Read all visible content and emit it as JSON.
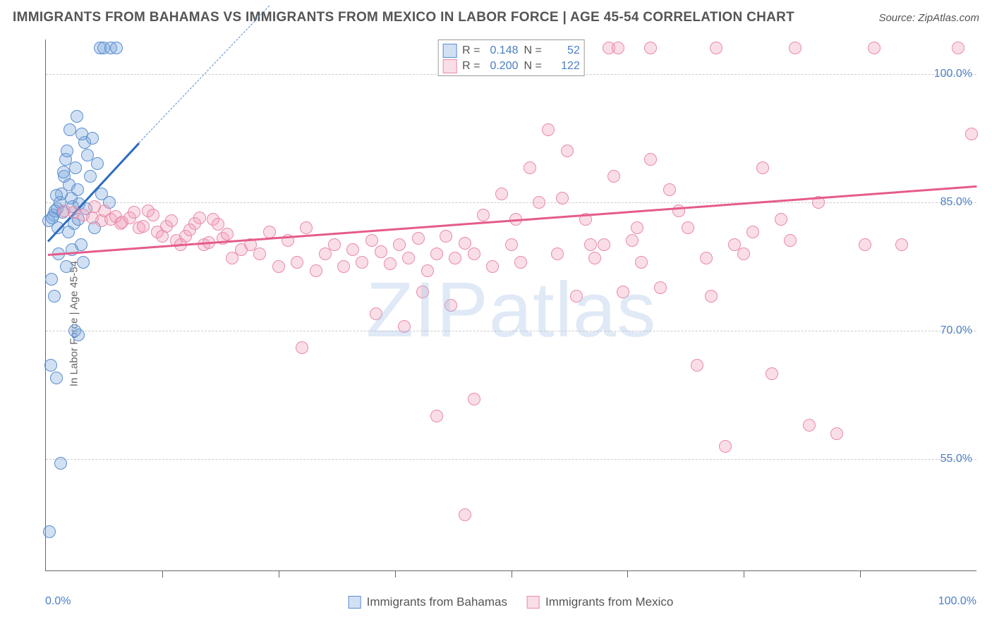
{
  "title": "IMMIGRANTS FROM BAHAMAS VS IMMIGRANTS FROM MEXICO IN LABOR FORCE | AGE 45-54 CORRELATION CHART",
  "source_label": "Source: ZipAtlas.com",
  "watermark_text": "ZIPatlas",
  "chart": {
    "type": "scatter",
    "y_axis_label": "In Labor Force | Age 45-54",
    "x_range": [
      0,
      100
    ],
    "y_range": [
      42,
      104
    ],
    "y_gridlines": [
      55.0,
      70.0,
      85.0,
      100.0
    ],
    "y_tick_labels": [
      "55.0%",
      "70.0%",
      "85.0%",
      "100.0%"
    ],
    "x_min_label": "0.0%",
    "x_max_label": "100.0%",
    "x_tick_positions": [
      12.5,
      25,
      37.5,
      50,
      62.5,
      75,
      87.5
    ],
    "y_tick_label_color": "#4a7fc6",
    "grid_color": "#cccccc",
    "border_color": "#666666",
    "background_color": "#ffffff",
    "marker_radius": 9,
    "marker_stroke_width": 1.2,
    "series": [
      {
        "name": "Immigrants from Bahamas",
        "legend_key": "bahamas",
        "fill_color": "rgba(124,167,220,0.35)",
        "stroke_color": "#5a8ecf",
        "solid_stroke": "#2d6cc0",
        "R": "0.148",
        "N": "52",
        "trend": {
          "x1": 0.2,
          "y1": 80.5,
          "x2": 10,
          "y2": 92,
          "ext_x2": 24,
          "ext_y2": 108
        },
        "points": [
          [
            0.8,
            83.5
          ],
          [
            1.0,
            84.0
          ],
          [
            1.2,
            84.2
          ],
          [
            1.3,
            82.0
          ],
          [
            1.5,
            85.0
          ],
          [
            1.7,
            86.0
          ],
          [
            1.8,
            83.8
          ],
          [
            2.0,
            88.0
          ],
          [
            2.1,
            90.0
          ],
          [
            2.3,
            91.0
          ],
          [
            2.5,
            87.0
          ],
          [
            2.7,
            85.5
          ],
          [
            2.9,
            84.5
          ],
          [
            3.0,
            82.5
          ],
          [
            3.2,
            89.0
          ],
          [
            3.4,
            86.5
          ],
          [
            3.6,
            84.8
          ],
          [
            3.8,
            80.0
          ],
          [
            4.0,
            78.0
          ],
          [
            4.2,
            92.0
          ],
          [
            4.5,
            90.5
          ],
          [
            0.6,
            76.0
          ],
          [
            0.9,
            74.0
          ],
          [
            1.4,
            79.0
          ],
          [
            2.2,
            77.5
          ],
          [
            2.8,
            79.5
          ],
          [
            0.5,
            66.0
          ],
          [
            1.1,
            64.5
          ],
          [
            3.1,
            70.0
          ],
          [
            3.5,
            69.5
          ],
          [
            5.8,
            103.0
          ],
          [
            6.2,
            103.0
          ],
          [
            7.0,
            103.0
          ],
          [
            7.6,
            103.0
          ],
          [
            2.6,
            93.5
          ],
          [
            3.3,
            95.0
          ],
          [
            3.9,
            93.0
          ],
          [
            5.0,
            92.5
          ],
          [
            5.5,
            89.5
          ],
          [
            6.0,
            86.0
          ],
          [
            6.8,
            85.0
          ],
          [
            1.6,
            54.5
          ],
          [
            0.4,
            46.5
          ],
          [
            0.3,
            82.8
          ],
          [
            0.7,
            83.2
          ],
          [
            1.9,
            88.5
          ],
          [
            4.8,
            88.0
          ],
          [
            2.4,
            81.5
          ],
          [
            1.15,
            85.8
          ],
          [
            3.45,
            83.0
          ],
          [
            4.3,
            84.2
          ],
          [
            5.2,
            82.0
          ]
        ]
      },
      {
        "name": "Immigrants from Mexico",
        "legend_key": "mexico",
        "fill_color": "rgba(242,160,185,0.35)",
        "stroke_color": "#e88aa8",
        "solid_stroke": "#e55b8a",
        "R": "0.200",
        "N": "122",
        "trend": {
          "x1": 0.2,
          "y1": 79.0,
          "x2": 100,
          "y2": 87.0,
          "ext_x2": 100,
          "ext_y2": 87.0
        },
        "points": [
          [
            2,
            84
          ],
          [
            3,
            83.8
          ],
          [
            4,
            83.5
          ],
          [
            5,
            83.2
          ],
          [
            6,
            82.8
          ],
          [
            7,
            83.0
          ],
          [
            8,
            82.5
          ],
          [
            9,
            83.2
          ],
          [
            10,
            82.0
          ],
          [
            11,
            84.0
          ],
          [
            12,
            81.5
          ],
          [
            13,
            82.2
          ],
          [
            14,
            80.5
          ],
          [
            15,
            81.0
          ],
          [
            16,
            82.5
          ],
          [
            17,
            80.0
          ],
          [
            18,
            83.0
          ],
          [
            19,
            80.8
          ],
          [
            20,
            78.5
          ],
          [
            22,
            80.0
          ],
          [
            23,
            79.0
          ],
          [
            24,
            81.5
          ],
          [
            25,
            77.5
          ],
          [
            26,
            80.5
          ],
          [
            27,
            78.0
          ],
          [
            28,
            82.0
          ],
          [
            29,
            77.0
          ],
          [
            30,
            79.0
          ],
          [
            31,
            80.0
          ],
          [
            32,
            77.5
          ],
          [
            33,
            79.5
          ],
          [
            34,
            78.0
          ],
          [
            35,
            80.5
          ],
          [
            36,
            79.2
          ],
          [
            37,
            77.8
          ],
          [
            38,
            80.0
          ],
          [
            39,
            78.5
          ],
          [
            40,
            80.8
          ],
          [
            41,
            77.0
          ],
          [
            42,
            79.0
          ],
          [
            43,
            81.0
          ],
          [
            44,
            78.5
          ],
          [
            45,
            80.2
          ],
          [
            46,
            79.0
          ],
          [
            47,
            83.5
          ],
          [
            48,
            77.5
          ],
          [
            49,
            86.0
          ],
          [
            50,
            80.0
          ],
          [
            51,
            78.0
          ],
          [
            52,
            89.0
          ],
          [
            53,
            85.0
          ],
          [
            54,
            93.5
          ],
          [
            55,
            79.0
          ],
          [
            56,
            91.0
          ],
          [
            57,
            74.0
          ],
          [
            58,
            83.0
          ],
          [
            59,
            78.5
          ],
          [
            60,
            80.0
          ],
          [
            61,
            88.0
          ],
          [
            62,
            74.5
          ],
          [
            63,
            80.5
          ],
          [
            64,
            78.0
          ],
          [
            65,
            90.0
          ],
          [
            67,
            86.5
          ],
          [
            69,
            82.0
          ],
          [
            70,
            66.0
          ],
          [
            71,
            78.5
          ],
          [
            73,
            56.5
          ],
          [
            74,
            80.0
          ],
          [
            75,
            79.0
          ],
          [
            77,
            89.0
          ],
          [
            78,
            65.0
          ],
          [
            80,
            80.5
          ],
          [
            82,
            59.0
          ],
          [
            83,
            85.0
          ],
          [
            85,
            58.0
          ],
          [
            88,
            80.0
          ],
          [
            92,
            80.0
          ],
          [
            47,
            103.0
          ],
          [
            52.5,
            103.0
          ],
          [
            56.5,
            103.0
          ],
          [
            60.5,
            103.0
          ],
          [
            61.5,
            103.0
          ],
          [
            65,
            103.0
          ],
          [
            72,
            103.0
          ],
          [
            80.5,
            103.0
          ],
          [
            89,
            103.0
          ],
          [
            98,
            103.0
          ],
          [
            99.5,
            93.0
          ],
          [
            42,
            60.0
          ],
          [
            46,
            62.0
          ],
          [
            27.5,
            68.0
          ],
          [
            35.5,
            72.0
          ],
          [
            38.5,
            70.5
          ],
          [
            40.5,
            74.5
          ],
          [
            43.5,
            73.0
          ],
          [
            45,
            48.5
          ],
          [
            5.2,
            84.5
          ],
          [
            6.3,
            84.0
          ],
          [
            7.5,
            83.3
          ],
          [
            8.2,
            82.7
          ],
          [
            9.5,
            83.8
          ],
          [
            10.5,
            82.2
          ],
          [
            11.5,
            83.5
          ],
          [
            12.5,
            81.0
          ],
          [
            13.5,
            82.8
          ],
          [
            14.5,
            80.0
          ],
          [
            15.5,
            81.8
          ],
          [
            21,
            79.5
          ],
          [
            16.5,
            83.2
          ],
          [
            17.5,
            80.3
          ],
          [
            18.5,
            82.4
          ],
          [
            19.5,
            81.3
          ],
          [
            50.5,
            83.0
          ],
          [
            55.5,
            85.5
          ],
          [
            58.5,
            80.0
          ],
          [
            63.5,
            82.0
          ],
          [
            66,
            75.0
          ],
          [
            68,
            84.0
          ],
          [
            71.5,
            74.0
          ],
          [
            76,
            81.5
          ],
          [
            79,
            83.0
          ]
        ]
      }
    ]
  },
  "stats_legend_labels": {
    "R": "R =",
    "N": "N ="
  },
  "bottom_legend": [
    {
      "series_index": 0
    },
    {
      "series_index": 1
    }
  ]
}
